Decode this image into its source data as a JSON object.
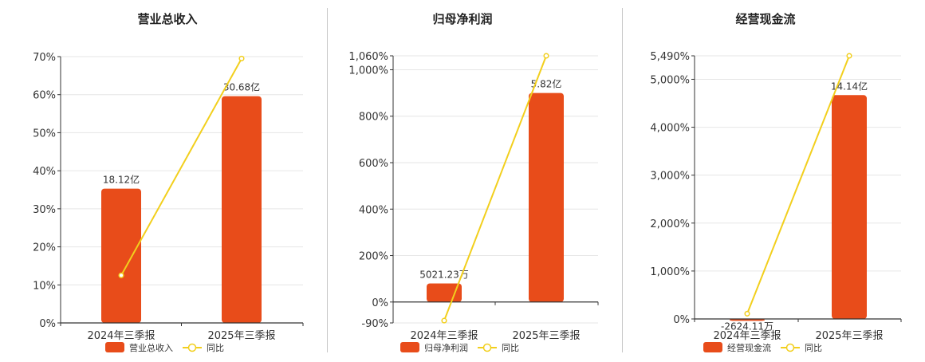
{
  "chart_data": [
    {
      "type": "bar",
      "title": "营业总收入",
      "categories": [
        "2024年三季报",
        "2025年三季报"
      ],
      "bar_series": {
        "name": "营业总收入",
        "values": [
          35.3,
          59.6
        ],
        "labels": [
          "18.12亿",
          "30.68亿"
        ]
      },
      "line_series": {
        "name": "同比",
        "values": [
          12.5,
          69.5
        ]
      },
      "ylim": [
        0,
        70
      ],
      "yticks": [
        0,
        10,
        20,
        30,
        40,
        50,
        60,
        70
      ],
      "ytick_labels": [
        "0%",
        "10%",
        "20%",
        "30%",
        "40%",
        "50%",
        "60%",
        "70%"
      ],
      "grid": true,
      "legend": "bottom-center"
    },
    {
      "type": "bar",
      "title": "归母净利润",
      "categories": [
        "2024年三季报",
        "2025年三季报"
      ],
      "bar_series": {
        "name": "归母净利润",
        "values": [
          80,
          900
        ],
        "labels": [
          "5021.23万",
          "5.82亿"
        ]
      },
      "line_series": {
        "name": "同比",
        "values": [
          -80,
          1060
        ]
      },
      "ylim": [
        -90,
        1060
      ],
      "yticks": [
        -90,
        0,
        200,
        400,
        600,
        800,
        1000,
        1060
      ],
      "ytick_labels": [
        "-90%",
        "0%",
        "200%",
        "400%",
        "600%",
        "800%",
        "1,000%",
        "1,060%"
      ],
      "grid": true,
      "legend": "bottom-center"
    },
    {
      "type": "bar",
      "title": "经营现金流",
      "categories": [
        "2024年三季报",
        "2025年三季报"
      ],
      "bar_series": {
        "name": "经营现金流",
        "values": [
          -40,
          4670
        ],
        "labels": [
          "-2624.11万",
          "14.14亿"
        ]
      },
      "line_series": {
        "name": "同比",
        "values": [
          110,
          5490
        ]
      },
      "ylim": [
        0,
        5490
      ],
      "yticks": [
        0,
        1000,
        2000,
        3000,
        4000,
        5000,
        5490
      ],
      "ytick_labels": [
        "0%",
        "1,000%",
        "2,000%",
        "3,000%",
        "4,000%",
        "5,000%",
        "5,490%"
      ],
      "grid": true,
      "legend": "bottom-center"
    }
  ],
  "colors": {
    "bar": "#e84c1a",
    "line": "#f2cf1d",
    "axis": "#333333",
    "grid": "#e6e6e6",
    "divider": "#c8c8c8"
  }
}
